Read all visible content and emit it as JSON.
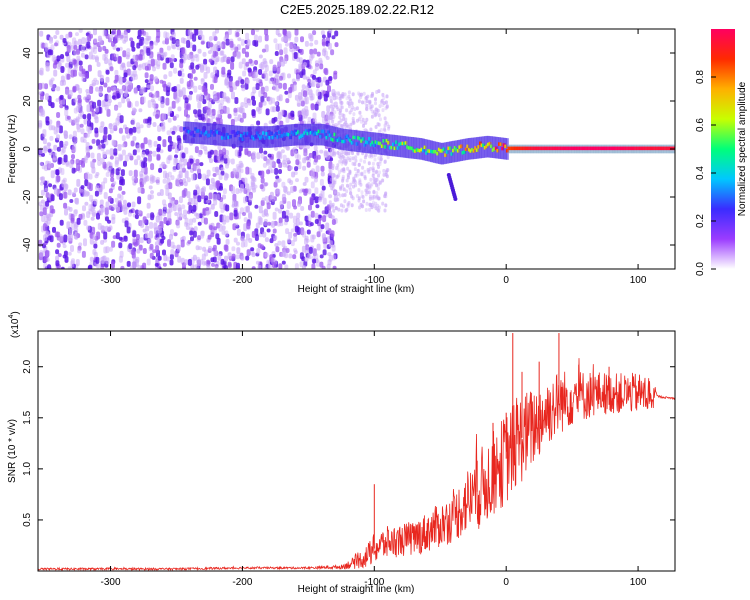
{
  "page": {
    "title": "C2E5.2025.189.02.22.R12"
  },
  "colors": {
    "axis": "#000000",
    "snr_line": "#e8271f",
    "background": "#ffffff"
  },
  "chart_data": [
    {
      "type": "heatmap",
      "title": "C2E5.2025.189.02.22.R12",
      "xlabel": "Height of straight line (km)",
      "ylabel": "Frequency (Hz)",
      "xlim": [
        -355,
        128
      ],
      "ylim": [
        -50,
        50
      ],
      "xticks": [
        -300,
        -200,
        -100,
        0,
        100
      ],
      "xtick_labels": [
        "-300",
        "-200",
        "-100",
        "0",
        "100"
      ],
      "yticks": [
        -40,
        -20,
        0,
        20,
        40
      ],
      "ytick_labels": [
        "-40",
        "-20",
        "0",
        "20",
        "40"
      ],
      "colorbar": {
        "label": "Normalized spectral amplitude",
        "range": [
          0,
          1
        ],
        "ticks": [
          0.0,
          0.2,
          0.4,
          0.6,
          0.8
        ],
        "tick_labels": [
          "0.0",
          "0.2",
          "0.4",
          "0.6",
          "0.8"
        ],
        "colormap": [
          "#ffffff",
          "#9b3cff",
          "#3a2cff",
          "#00c8ff",
          "#00ff7a",
          "#c8ff00",
          "#ffb000",
          "#ff2a00",
          "#ff0060"
        ]
      },
      "noise_region": {
        "x": [
          -355,
          -130
        ],
        "y": [
          -50,
          50
        ],
        "amplitude": 0.15
      },
      "signal_track": {
        "x": [
          -245,
          -220,
          -200,
          -180,
          -160,
          -140,
          -125,
          -110,
          -95,
          -80,
          -65,
          -50,
          -40,
          -30,
          -15,
          0,
          20,
          50,
          80,
          110,
          128
        ],
        "frequency": [
          7,
          6,
          5,
          5,
          6,
          6,
          4,
          3,
          2,
          1,
          0,
          -2,
          -1,
          0,
          1,
          0,
          0,
          0,
          0,
          0,
          0
        ],
        "amplitude": [
          0.25,
          0.3,
          0.28,
          0.3,
          0.35,
          0.4,
          0.4,
          0.45,
          0.5,
          0.55,
          0.5,
          0.55,
          0.6,
          0.65,
          0.7,
          0.85,
          0.95,
          1.0,
          1.0,
          0.95,
          0.95
        ]
      },
      "dropout_feature": {
        "x": [
          -45,
          -40
        ],
        "frequency": [
          -10,
          -20
        ]
      }
    },
    {
      "type": "line",
      "xlabel": "Height of straight line (km)",
      "ylabel": "SNR (10 * v/v)",
      "y_multiplier": "(x10",
      "y_multiplier_exponent": "4",
      "y_multiplier_close": ")",
      "xlim": [
        -355,
        128
      ],
      "ylim": [
        0,
        2.35
      ],
      "xticks": [
        -300,
        -200,
        -100,
        0,
        100
      ],
      "xtick_labels": [
        "-300",
        "-200",
        "-100",
        "0",
        "100"
      ],
      "yticks": [
        0.5,
        1.0,
        1.5,
        2.0
      ],
      "ytick_labels": [
        "0.5",
        "1.0",
        "1.5",
        "2.0"
      ],
      "series": [
        {
          "x": [
            -355,
            -300,
            -250,
            -200,
            -150,
            -125,
            -115,
            -105,
            -100,
            -95,
            -90,
            -80,
            -70,
            -60,
            -50,
            -40,
            -30,
            -20,
            -10,
            0,
            5,
            10,
            20,
            30,
            40,
            50,
            60,
            70,
            80,
            90,
            100,
            110,
            115,
            120,
            128
          ],
          "y": [
            0.02,
            0.02,
            0.02,
            0.03,
            0.03,
            0.04,
            0.08,
            0.15,
            0.22,
            0.25,
            0.28,
            0.3,
            0.32,
            0.38,
            0.45,
            0.52,
            0.68,
            0.8,
            0.95,
            1.1,
            1.2,
            1.28,
            1.4,
            1.55,
            1.65,
            1.7,
            1.72,
            1.74,
            1.74,
            1.74,
            1.74,
            1.72,
            1.71,
            1.7,
            1.69
          ],
          "noise_amplitude": [
            0.01,
            0.01,
            0.01,
            0.01,
            0.01,
            0.02,
            0.06,
            0.12,
            0.15,
            0.16,
            0.16,
            0.16,
            0.18,
            0.2,
            0.22,
            0.24,
            0.32,
            0.4,
            0.42,
            0.45,
            0.45,
            0.45,
            0.4,
            0.35,
            0.32,
            0.28,
            0.25,
            0.22,
            0.2,
            0.2,
            0.2,
            0.2,
            0.01,
            0.01,
            0.01
          ],
          "spikes": [
            {
              "x": 5,
              "y": 2.33
            },
            {
              "x": 40,
              "y": 2.33
            },
            {
              "x": -100,
              "y": 0.85
            },
            {
              "x": -22,
              "y": 1.08
            },
            {
              "x": -10,
              "y": 1.45
            },
            {
              "x": 0,
              "y": 1.55
            },
            {
              "x": 12,
              "y": 1.95
            },
            {
              "x": 25,
              "y": 2.05
            },
            {
              "x": 55,
              "y": 2.02
            },
            {
              "x": 78,
              "y": 2.0
            }
          ]
        }
      ]
    }
  ]
}
